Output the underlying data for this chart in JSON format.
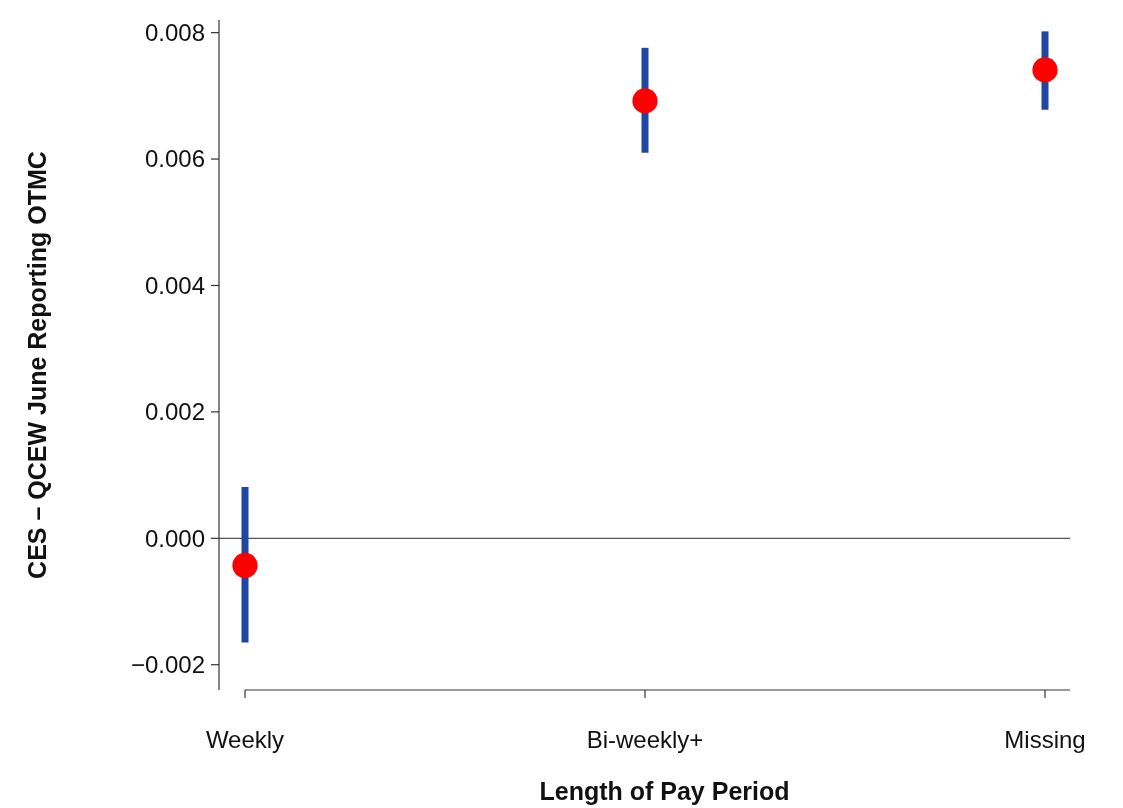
{
  "chart_data": {
    "type": "scatter",
    "xlabel": "Length of Pay Period",
    "ylabel": "CES – QCEW June Reporting OTMC",
    "categories": [
      "Weekly",
      "Bi-weekly+",
      "Missing"
    ],
    "series": [
      {
        "color": "#ff0000",
        "values": [
          -0.00043,
          0.00692,
          0.00741
        ],
        "errors": [
          [
            -0.00165,
            0.00081
          ],
          [
            0.0061,
            0.00776
          ],
          [
            0.00678,
            0.00802
          ]
        ]
      }
    ],
    "ylim": [
      -0.0024,
      0.0082
    ],
    "yticks": [
      {
        "value": -0.002,
        "label": "−0.002"
      },
      {
        "value": 0,
        "label": "0.000"
      },
      {
        "value": 0.002,
        "label": "0.002"
      },
      {
        "value": 0.004,
        "label": "0.004"
      },
      {
        "value": 0.006,
        "label": "0.006"
      },
      {
        "value": 0.008,
        "label": "0.008"
      }
    ],
    "ref_lines": [
      {
        "axis": "y",
        "value": 0,
        "color": "#555555"
      }
    ],
    "grid": false,
    "marker": "circle"
  }
}
